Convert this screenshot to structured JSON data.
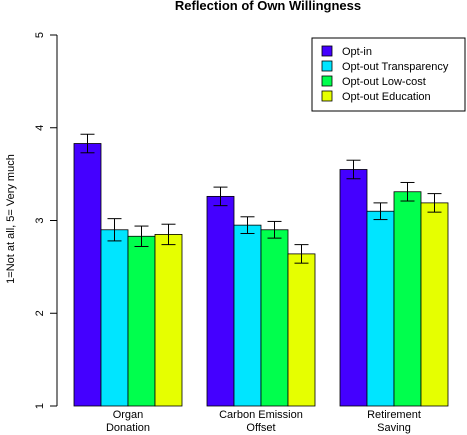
{
  "chart_data": {
    "type": "bar",
    "title": "Reflection of Own Willingness",
    "xlabel": "",
    "ylabel": "1=Not at all, 5= Very much",
    "ylim": [
      1,
      5
    ],
    "yticks": [
      "1",
      "2",
      "3",
      "4",
      "5"
    ],
    "categories": [
      [
        "Organ",
        "Donation"
      ],
      [
        "Carbon Emission",
        "Offset"
      ],
      [
        "Retirement",
        "Saving"
      ]
    ],
    "series": [
      {
        "name": "Opt-in",
        "color": "#4400ff",
        "values": [
          3.83,
          3.26,
          3.55
        ],
        "err": [
          0.1,
          0.1,
          0.1
        ]
      },
      {
        "name": "Opt-out Transparency",
        "color": "#00e5ff",
        "values": [
          2.9,
          2.95,
          3.1
        ],
        "err": [
          0.12,
          0.09,
          0.09
        ]
      },
      {
        "name": "Opt-out Low-cost",
        "color": "#00ff4d",
        "values": [
          2.83,
          2.9,
          3.31
        ],
        "err": [
          0.11,
          0.09,
          0.1
        ]
      },
      {
        "name": "Opt-out Education",
        "color": "#e6ff00",
        "values": [
          2.85,
          2.64,
          3.19
        ],
        "err": [
          0.11,
          0.1,
          0.1
        ]
      }
    ],
    "error_bars": true,
    "grid": false,
    "legend_position": "top-right"
  }
}
